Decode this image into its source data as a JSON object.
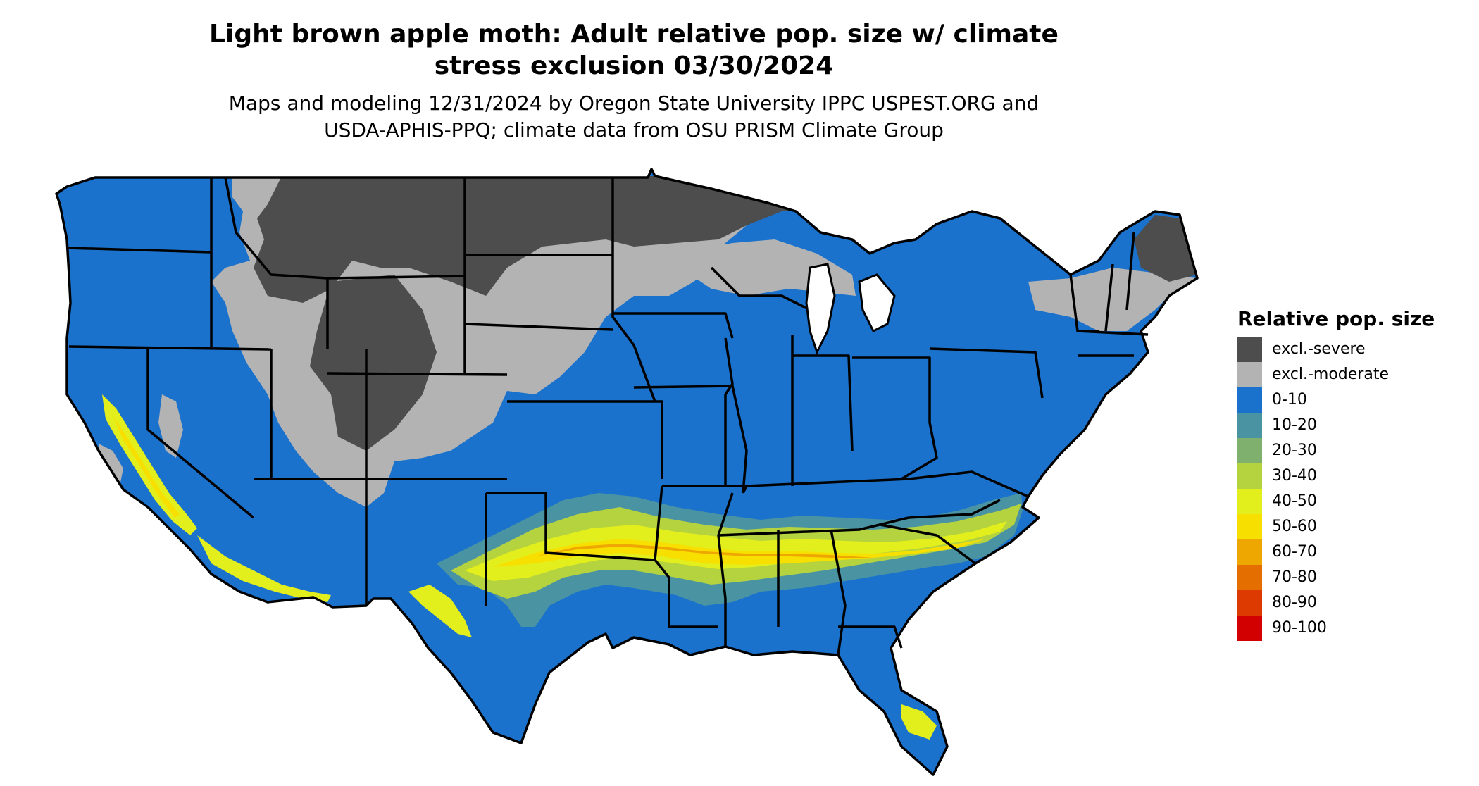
{
  "title_line1": "Light brown apple moth: Adult relative pop. size w/ climate",
  "title_line2": "stress exclusion 03/30/2024",
  "subtitle_line1": "Maps and modeling 12/31/2024 by Oregon State University IPPC USPEST.ORG and",
  "subtitle_line2": "USDA-APHIS-PPQ; climate data from OSU PRISM Climate Group",
  "legend": {
    "title": "Relative pop. size",
    "items": [
      {
        "label": "excl.-severe",
        "color": "#4d4d4d"
      },
      {
        "label": "excl.-moderate",
        "color": "#b3b3b3"
      },
      {
        "label": "0-10",
        "color": "#1a72cc"
      },
      {
        "label": "10-20",
        "color": "#4a93a3"
      },
      {
        "label": "20-30",
        "color": "#7fb06e"
      },
      {
        "label": "30-40",
        "color": "#b5d33e"
      },
      {
        "label": "40-50",
        "color": "#e3ef1d"
      },
      {
        "label": "50-60",
        "color": "#f7df00"
      },
      {
        "label": "60-70",
        "color": "#eea600"
      },
      {
        "label": "70-80",
        "color": "#e56e00"
      },
      {
        "label": "80-90",
        "color": "#dc3a00"
      },
      {
        "label": "90-100",
        "color": "#d20000"
      }
    ]
  }
}
